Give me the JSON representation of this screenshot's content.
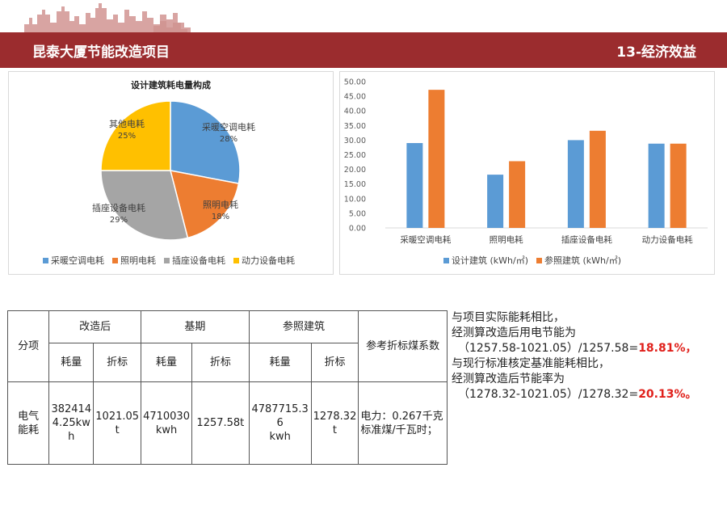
{
  "header": {
    "title": "昆泰大厦节能改造项目",
    "section": "13-经济效益",
    "color": "#9b2c2e"
  },
  "pie_chart": {
    "title": "设计建筑耗电量构成",
    "colors": [
      "#5b9bd5",
      "#ed7d31",
      "#a5a5a5",
      "#ffc000"
    ]
  },
  "bar_chart": {
    "colors": [
      "#5b9bd5",
      "#ed7d31"
    ]
  },
  "chart_data": [
    {
      "type": "pie",
      "title": "设计建筑耗电量构成",
      "categories": [
        "采暖空调电耗",
        "照明电耗",
        "插座设备电耗",
        "其他电耗"
      ],
      "values": [
        28,
        18,
        29,
        25
      ],
      "value_labels": [
        "28%",
        "18%",
        "29%",
        "25%"
      ],
      "legend": [
        "采暖空调电耗",
        "照明电耗",
        "插座设备电耗",
        "动力设备电耗"
      ],
      "legend_position": "bottom"
    },
    {
      "type": "bar",
      "categories": [
        "采暖空调电耗",
        "照明电耗",
        "插座设备电耗",
        "动力设备电耗"
      ],
      "series": [
        {
          "name": "设计建筑 (kWh/㎡)",
          "values": [
            29.0,
            18.2,
            30.0,
            28.8
          ]
        },
        {
          "name": "参照建筑 (kWh/㎡)",
          "values": [
            47.2,
            22.8,
            33.2,
            28.8
          ]
        }
      ],
      "ylim": [
        0,
        50
      ],
      "yticks": [
        "0.00",
        "5.00",
        "10.00",
        "15.00",
        "20.00",
        "25.00",
        "30.00",
        "35.00",
        "40.00",
        "45.00",
        "50.00"
      ],
      "grid": false,
      "legend_position": "bottom"
    }
  ],
  "table": {
    "col_item": "分项",
    "group_after": "改造后",
    "group_base": "基期",
    "group_ref": "参照建筑",
    "col_coef": "参考折标煤系数",
    "sub_consumption": "耗量",
    "sub_conversion": "折标",
    "row_label": "电气\n能耗",
    "after_consumption": "382414\n4.25kw\nh",
    "after_conversion": "1021.05\nt",
    "base_consumption": "4710030\nkwh",
    "base_conversion": "1257.58t",
    "ref_consumption": "4787715.3\n6\nkwh",
    "ref_conversion": "1278.32\nt",
    "coef_value": "电力：0.267千克\n标准煤/千瓦时；"
  },
  "note": {
    "line1": "与项目实际能耗相比，",
    "line2": "经测算改造后用电节能为",
    "line3": "（1257.58-1021.05）/1257.58=",
    "result1": "18.81%，",
    "line4": "与现行标准核定基准能耗相比，",
    "line5": "经测算改造后节能率为",
    "line6": "（1278.32-1021.05）/1278.32=",
    "result2": "20.13%。"
  }
}
